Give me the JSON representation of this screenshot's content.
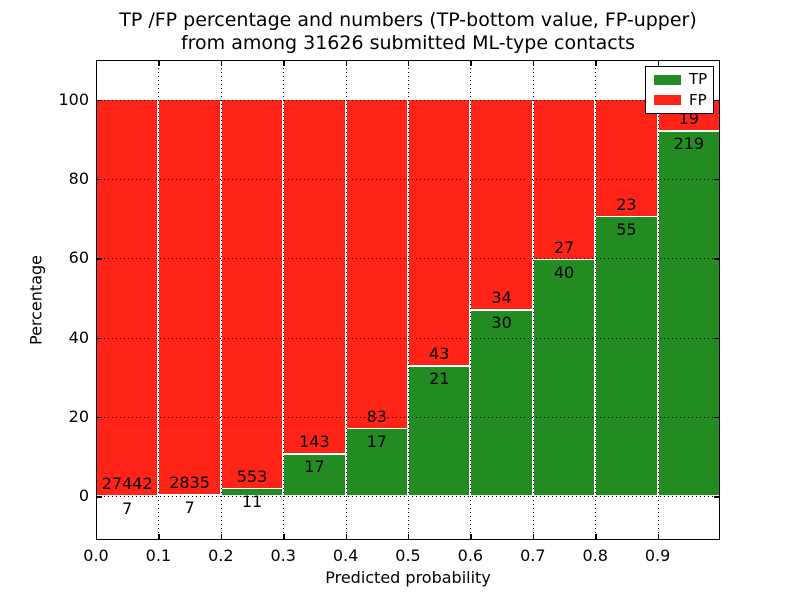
{
  "figure_title": {
    "line1": "TP /FP percentage and numbers (TP-bottom value, FP-upper)",
    "line2": "from among 31626 submitted ML-type contacts"
  },
  "chart_data": {
    "type": "bar",
    "stacked": true,
    "orientation": "vertical",
    "title": "TP /FP percentage and numbers (TP-bottom value, FP-upper) from among 31626 submitted ML-type contacts",
    "xlabel": "Predicted probability",
    "ylabel": "Percentage",
    "xlim": [
      0.0,
      1.0
    ],
    "ylim_display": [
      -11,
      110
    ],
    "bar_width": 0.1,
    "bin_left_edges": [
      0.0,
      0.1,
      0.2,
      0.3,
      0.4,
      0.5,
      0.6,
      0.7,
      0.8,
      0.9
    ],
    "xtick_labels": [
      "0.0",
      "0.1",
      "0.2",
      "0.3",
      "0.4",
      "0.5",
      "0.6",
      "0.7",
      "0.8",
      "0.9"
    ],
    "ytick_values": [
      0,
      20,
      40,
      60,
      80,
      100
    ],
    "grid": true,
    "grid_style": "dotted",
    "legend": {
      "position": "upper right",
      "entries": [
        "TP",
        "FP"
      ]
    },
    "series": [
      {
        "name": "TP",
        "color": "#228b22",
        "position": "bottom",
        "counts": [
          7,
          7,
          11,
          17,
          17,
          21,
          30,
          40,
          55,
          219
        ]
      },
      {
        "name": "FP",
        "color": "#ff2318",
        "position": "top",
        "counts": [
          27442,
          2835,
          553,
          143,
          83,
          43,
          34,
          27,
          23,
          19
        ]
      }
    ],
    "tp_percent_of_bin": [
      0.03,
      0.25,
      1.95,
      10.63,
      17.0,
      32.81,
      46.88,
      59.7,
      70.51,
      92.02
    ]
  }
}
